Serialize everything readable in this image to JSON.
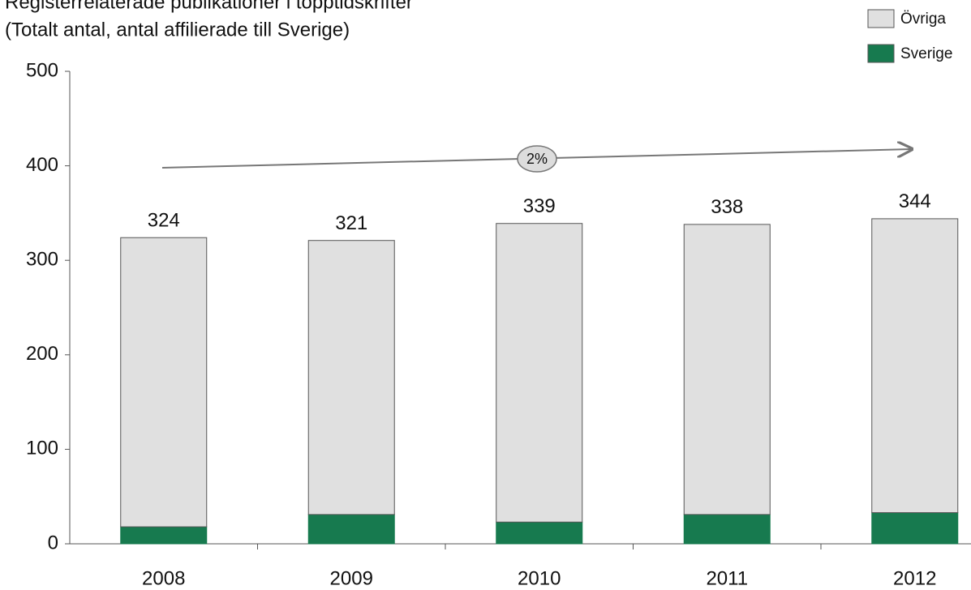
{
  "chart_data": {
    "type": "stacked_bar",
    "title": "Registerrelaterade publikationer i topptidskrifter",
    "subtitle": "(Totalt antal, antal affilierade till Sverige)",
    "categories": [
      "2008",
      "2009",
      "2010",
      "2011",
      "2012"
    ],
    "series": [
      {
        "name": "Sverige",
        "color": "#177a4f",
        "values": [
          18,
          31,
          23,
          31,
          33
        ]
      },
      {
        "name": "Övriga",
        "color": "#e0e0e0",
        "values": [
          306,
          290,
          316,
          307,
          311
        ]
      }
    ],
    "totals": [
      324,
      321,
      339,
      338,
      344
    ],
    "annotation": "2%",
    "ylim": [
      0,
      500
    ],
    "yticks": [
      0,
      100,
      200,
      300,
      400,
      500
    ],
    "legend": "top-right"
  }
}
